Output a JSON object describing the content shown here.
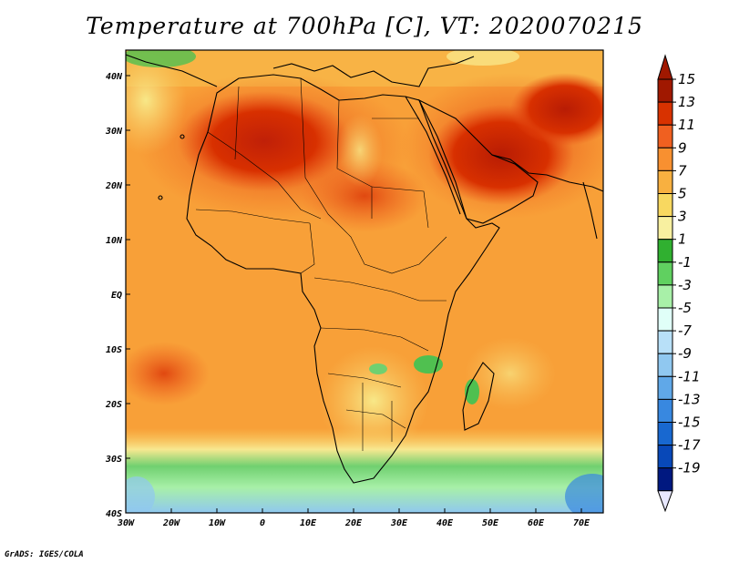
{
  "title": "Temperature at 700hPa [C], VT: 2020070215",
  "credit": "GrADS: IGES/COLA",
  "map": {
    "lat_ticks": [
      "40N",
      "30N",
      "20N",
      "10N",
      "EQ",
      "10S",
      "20S",
      "30S",
      "40S"
    ],
    "lon_ticks": [
      "30W",
      "20W",
      "10W",
      "0",
      "10E",
      "20E",
      "30E",
      "40E",
      "50E",
      "60E",
      "70E"
    ]
  },
  "colorbar": {
    "labels": [
      "15",
      "13",
      "11",
      "9",
      "7",
      "5",
      "3",
      "1",
      "-1",
      "-3",
      "-5",
      "-7",
      "-9",
      "-11",
      "-13",
      "-15",
      "-17",
      "-19"
    ],
    "colors": [
      "#a01800",
      "#d83200",
      "#f06020",
      "#f89030",
      "#f8b040",
      "#f8d860",
      "#f8f0a0",
      "#30b030",
      "#60d060",
      "#a8f0a8",
      "#e0fff8",
      "#b8e0f8",
      "#90c8f0",
      "#60a8e8",
      "#3888e0",
      "#1868d0",
      "#0848b8",
      "#001880"
    ],
    "top_triangle_color": "#a01800",
    "bottom_triangle_color": "#e8e8ff"
  }
}
